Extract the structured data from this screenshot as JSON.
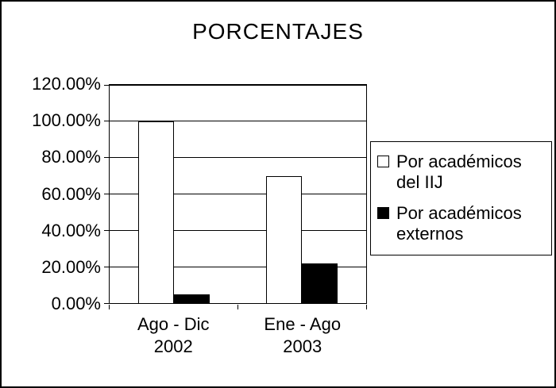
{
  "chart_data": {
    "type": "bar",
    "title": "PORCENTAJES",
    "categories": [
      "Ago - Dic\n2002",
      "Ene - Ago\n2003"
    ],
    "series": [
      {
        "name": "Por académicos del IIJ",
        "color": "#ffffff",
        "values": [
          100,
          70
        ]
      },
      {
        "name": "Por académicos externos",
        "color": "#000000",
        "values": [
          5,
          22
        ]
      }
    ],
    "ylim": [
      0,
      120
    ],
    "yticks": [
      {
        "value": 120,
        "label": "120.00%"
      },
      {
        "value": 100,
        "label": "100.00%"
      },
      {
        "value": 80,
        "label": "80.00%"
      },
      {
        "value": 60,
        "label": "60.00%"
      },
      {
        "value": 40,
        "label": "40.00%"
      },
      {
        "value": 20,
        "label": "20.00%"
      },
      {
        "value": 0,
        "label": "0.00%"
      }
    ],
    "grid": true,
    "legend_position": "right",
    "colors": {
      "axis": "#000000",
      "background": "#ffffff"
    }
  }
}
